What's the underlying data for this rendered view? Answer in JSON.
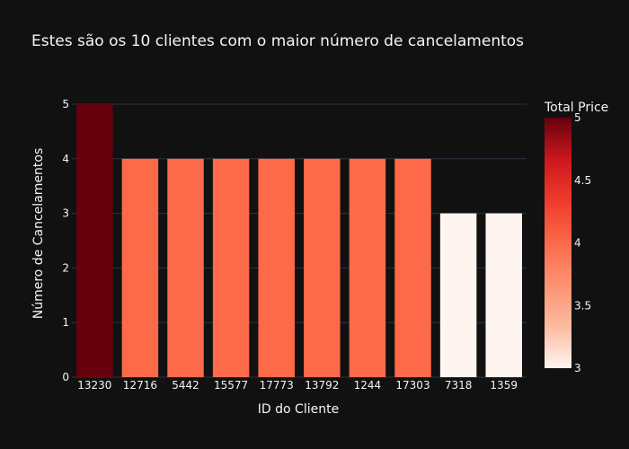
{
  "chart_data": {
    "type": "bar",
    "title": "Estes são os 10 clientes com o maior número de cancelamentos",
    "xlabel": "ID do Cliente",
    "ylabel": "Número de Cancelamentos",
    "categories": [
      "13230",
      "12716",
      "5442",
      "15577",
      "17773",
      "13792",
      "1244",
      "17303",
      "7318",
      "1359"
    ],
    "values": [
      5,
      4,
      4,
      4,
      4,
      4,
      4,
      4,
      3,
      3
    ],
    "ylim": [
      0,
      5
    ],
    "yticks": [
      "0",
      "1",
      "2",
      "3",
      "4",
      "5"
    ],
    "grid": true,
    "colorbar": {
      "title": "Total Price",
      "range": [
        3,
        5
      ],
      "ticks": [
        "3",
        "3.5",
        "4",
        "4.5",
        "5"
      ],
      "colorscale": [
        "#fff5f0",
        "#fcbba1",
        "#fc9272",
        "#fb6a4a",
        "#ef3b2c",
        "#cb181d",
        "#67000d"
      ]
    },
    "bar_colors": {
      "3": "#fff5f0",
      "4": "#fc6a4a",
      "5": "#67000d"
    }
  }
}
